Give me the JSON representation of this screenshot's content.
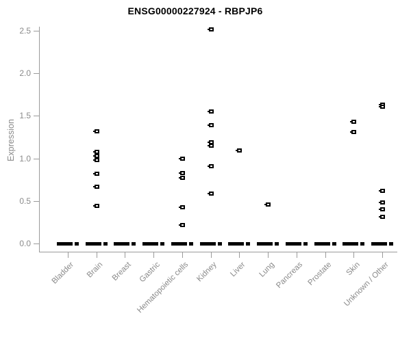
{
  "title": "ENSG00000227924 - RBPJP6",
  "chart_data": {
    "type": "scatter",
    "title": "ENSG00000227924 - RBPJP6",
    "xlabel": "",
    "ylabel": "Expression",
    "ylim": [
      0.0,
      2.5
    ],
    "yticks": [
      0.0,
      0.5,
      1.0,
      1.5,
      2.0,
      2.5
    ],
    "ytick_labels": [
      "0.0",
      "0.5",
      "1.0",
      "1.5",
      "2.0",
      "2.5"
    ],
    "grid": "off",
    "legend": "none",
    "categories": [
      "Bladder",
      "Brain",
      "Breast",
      "Gastric",
      "Hematopoietic cells",
      "Kidney",
      "Liver",
      "Lung",
      "Pancreas",
      "Prostate",
      "Skin",
      "Unknown / Other"
    ],
    "series": [
      {
        "category": "Bladder",
        "values": [],
        "zero_cluster": true
      },
      {
        "category": "Brain",
        "values": [
          1.32,
          1.08,
          1.03,
          0.98,
          0.82,
          0.67,
          0.44
        ],
        "zero_cluster": true
      },
      {
        "category": "Breast",
        "values": [],
        "zero_cluster": true
      },
      {
        "category": "Gastric",
        "values": [],
        "zero_cluster": true
      },
      {
        "category": "Hematopoietic cells",
        "values": [
          1.0,
          0.83,
          0.77,
          0.43,
          0.22
        ],
        "zero_cluster": true
      },
      {
        "category": "Kidney",
        "values": [
          2.52,
          1.55,
          1.39,
          1.19,
          1.15,
          0.91,
          0.59
        ],
        "zero_cluster": true
      },
      {
        "category": "Liver",
        "values": [
          1.09
        ],
        "zero_cluster": true
      },
      {
        "category": "Lung",
        "values": [
          0.46
        ],
        "zero_cluster": true
      },
      {
        "category": "Pancreas",
        "values": [],
        "zero_cluster": true
      },
      {
        "category": "Prostate",
        "values": [],
        "zero_cluster": true
      },
      {
        "category": "Skin",
        "values": [
          1.43,
          1.31
        ],
        "zero_cluster": true
      },
      {
        "category": "Unknown / Other",
        "values": [
          1.63,
          1.61,
          0.62,
          0.48,
          0.4,
          0.31
        ],
        "zero_cluster": true
      }
    ],
    "zero_cluster_note": "each category shows a dense stack of samples at expression 0.0 drawn as a thick black dash"
  },
  "colors": {
    "marker": "#000000",
    "axis_line": "#9a9a9a",
    "axis_text": "#8a8a8a",
    "title_text": "#000000",
    "background": "#ffffff"
  }
}
